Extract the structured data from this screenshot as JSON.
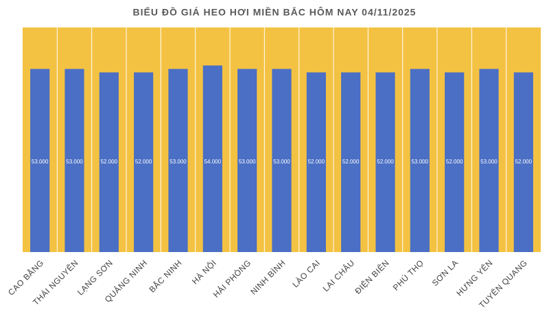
{
  "chart_data": {
    "type": "bar",
    "title": "BIỂU ĐỒ GIÁ HEO HƠI MIỀN BẮC HÔM NAY 04/11/2025",
    "categories": [
      "CAO BẰNG",
      "THÁI NGUYÊN",
      "LẠNG SƠN",
      "QUẢNG NINH",
      "BẮC NINH",
      "HÀ NỘI",
      "HẢI PHÒNG",
      "NINH BÌNH",
      "LÀO CAI",
      "LAI CHÂU",
      "ĐIỆN BIÊN",
      "PHÚ THỌ",
      "SƠN LA",
      "HƯNG YÊN",
      "TUYÊN QUANG"
    ],
    "values": [
      53000,
      53000,
      52000,
      52000,
      53000,
      54000,
      53000,
      53000,
      52000,
      52000,
      52000,
      53000,
      52000,
      53000,
      52000
    ],
    "value_labels": [
      "53.000",
      "53.000",
      "52.000",
      "52.000",
      "53.000",
      "54.000",
      "53.000",
      "53.000",
      "52.000",
      "52.000",
      "52.000",
      "53.000",
      "52.000",
      "53.000",
      "52.000"
    ],
    "color": "#4a6fc4",
    "background": "#f4c242",
    "ylim": [
      0,
      65000
    ]
  }
}
